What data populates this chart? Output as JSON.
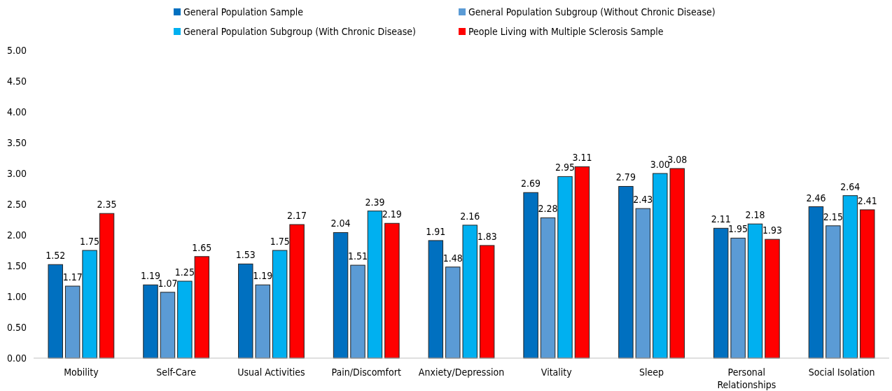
{
  "chart_data": {
    "type": "bar",
    "categories": [
      "Mobility",
      "Self-Care",
      "Usual Activities",
      "Pain/Discomfort",
      "Anxiety/Depression",
      "Vitality",
      "Sleep",
      "Personal Relationships",
      "Social Isolation"
    ],
    "series": [
      {
        "name": "General Population Sample",
        "color": "#0070c0",
        "values": [
          1.52,
          1.19,
          1.53,
          2.04,
          1.91,
          2.69,
          2.79,
          2.11,
          2.46
        ],
        "value_labels": [
          "1.52",
          "1.19",
          "1.53",
          "2.04",
          "1.91",
          "2.69",
          "2.79",
          "2.11",
          "2.46"
        ]
      },
      {
        "name": "General Population Subgroup (Without Chronic Disease)",
        "color": "#5b9bd5",
        "values": [
          1.17,
          1.07,
          1.19,
          1.51,
          1.48,
          2.28,
          2.43,
          1.95,
          2.15
        ],
        "value_labels": [
          "1.17",
          "1.07",
          "1.19",
          "1.51",
          "1.48",
          "2.28",
          "2.43",
          "1.95",
          "2.15"
        ]
      },
      {
        "name": "General Population Subgroup (With Chronic Disease)",
        "color": "#00b0f0",
        "values": [
          1.75,
          1.25,
          1.75,
          2.39,
          2.16,
          2.95,
          3.0,
          2.18,
          2.64
        ],
        "value_labels": [
          "1.75",
          "1.25",
          "1.75",
          "2.39",
          "2.16",
          "2.95",
          "3.00",
          "2.18",
          "2.64"
        ]
      },
      {
        "name": "People Living with Multiple Sclerosis Sample",
        "color": "#ff0000",
        "values": [
          2.35,
          1.65,
          2.17,
          2.19,
          1.83,
          3.11,
          3.08,
          1.93,
          2.41
        ],
        "value_labels": [
          "2.35",
          "1.65",
          "2.17",
          "2.19",
          "1.83",
          "3.11",
          "3.08",
          "1.93",
          "2.41"
        ]
      }
    ],
    "ylim": [
      0,
      5
    ],
    "yticks": [
      {
        "value": 0,
        "label": "0.00"
      },
      {
        "value": 0.5,
        "label": "0.50"
      },
      {
        "value": 1,
        "label": "1.00"
      },
      {
        "value": 1.5,
        "label": "1.50"
      },
      {
        "value": 2,
        "label": "2.00"
      },
      {
        "value": 2.5,
        "label": "2.50"
      },
      {
        "value": 3,
        "label": "3.00"
      },
      {
        "value": 3.5,
        "label": "3.50"
      },
      {
        "value": 4,
        "label": "4.00"
      },
      {
        "value": 4.5,
        "label": "4.50"
      },
      {
        "value": 5,
        "label": "5.00"
      }
    ],
    "grid": false,
    "legend": "top"
  }
}
